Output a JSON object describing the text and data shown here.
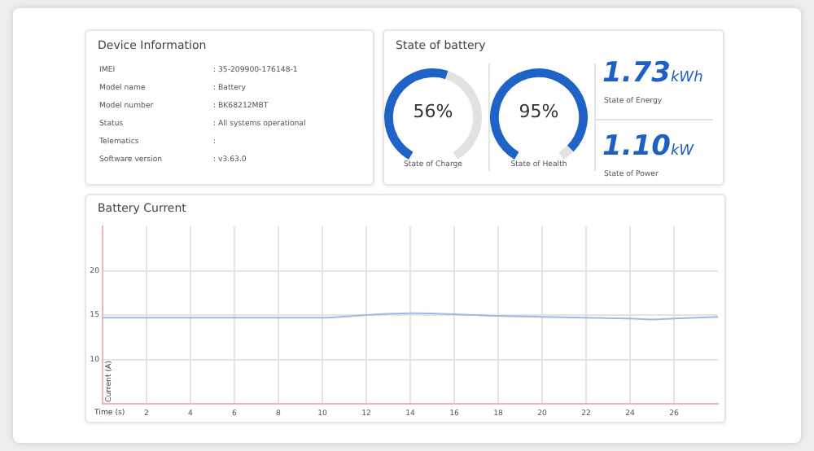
{
  "chart_data": [
    {
      "type": "other",
      "title": "Device Information",
      "annotations": [
        "IMEI",
        ": 35-209900-176148-1",
        "Model name",
        ": Battery",
        "Model number",
        ": BK68212MBT",
        "Status",
        ": All systems operational",
        "Telematics",
        ":",
        "Software version",
        ": v3.63.0"
      ]
    },
    {
      "type": "other",
      "title": "State of battery",
      "annotations": [
        "1.73",
        "kWh",
        "State of Energy",
        "1.10",
        "kW",
        "State of Power"
      ]
    },
    {
      "type": "donut",
      "title": "State of Charge",
      "categories": [
        null,
        null
      ],
      "values": [
        56,
        44
      ],
      "colors": [
        "#1f63c6",
        "#e2e2e2"
      ],
      "value_labels": [
        "56%",
        null
      ]
    },
    {
      "type": "donut",
      "title": "State of Health",
      "categories": [
        null,
        null
      ],
      "values": [
        95,
        5
      ],
      "colors": [
        "#1f63c6",
        "#e2e2e2"
      ],
      "value_labels": [
        "95%",
        null
      ]
    },
    {
      "type": "line",
      "title": "Battery Current",
      "xlabel": "Time (s)",
      "ylabel": "Current (A)",
      "x": [
        0,
        2,
        4,
        6,
        8,
        10,
        12,
        14,
        16,
        18,
        20,
        22,
        24,
        25,
        26,
        28
      ],
      "series": [
        {
          "color": "#9dbbe6",
          "values": [
            14.7,
            14.7,
            14.7,
            14.7,
            14.7,
            14.7,
            15.0,
            15.2,
            15.1,
            14.9,
            14.8,
            14.7,
            14.6,
            14.5,
            14.6,
            14.8
          ]
        }
      ],
      "xlim": [
        0,
        28
      ],
      "xticks": [
        2,
        4,
        6,
        8,
        10,
        12,
        14,
        16,
        18,
        20,
        22,
        24,
        26
      ],
      "ylim": [
        5,
        25
      ],
      "yticks": [
        10,
        15,
        20
      ],
      "grid": true,
      "legend": false
    }
  ]
}
